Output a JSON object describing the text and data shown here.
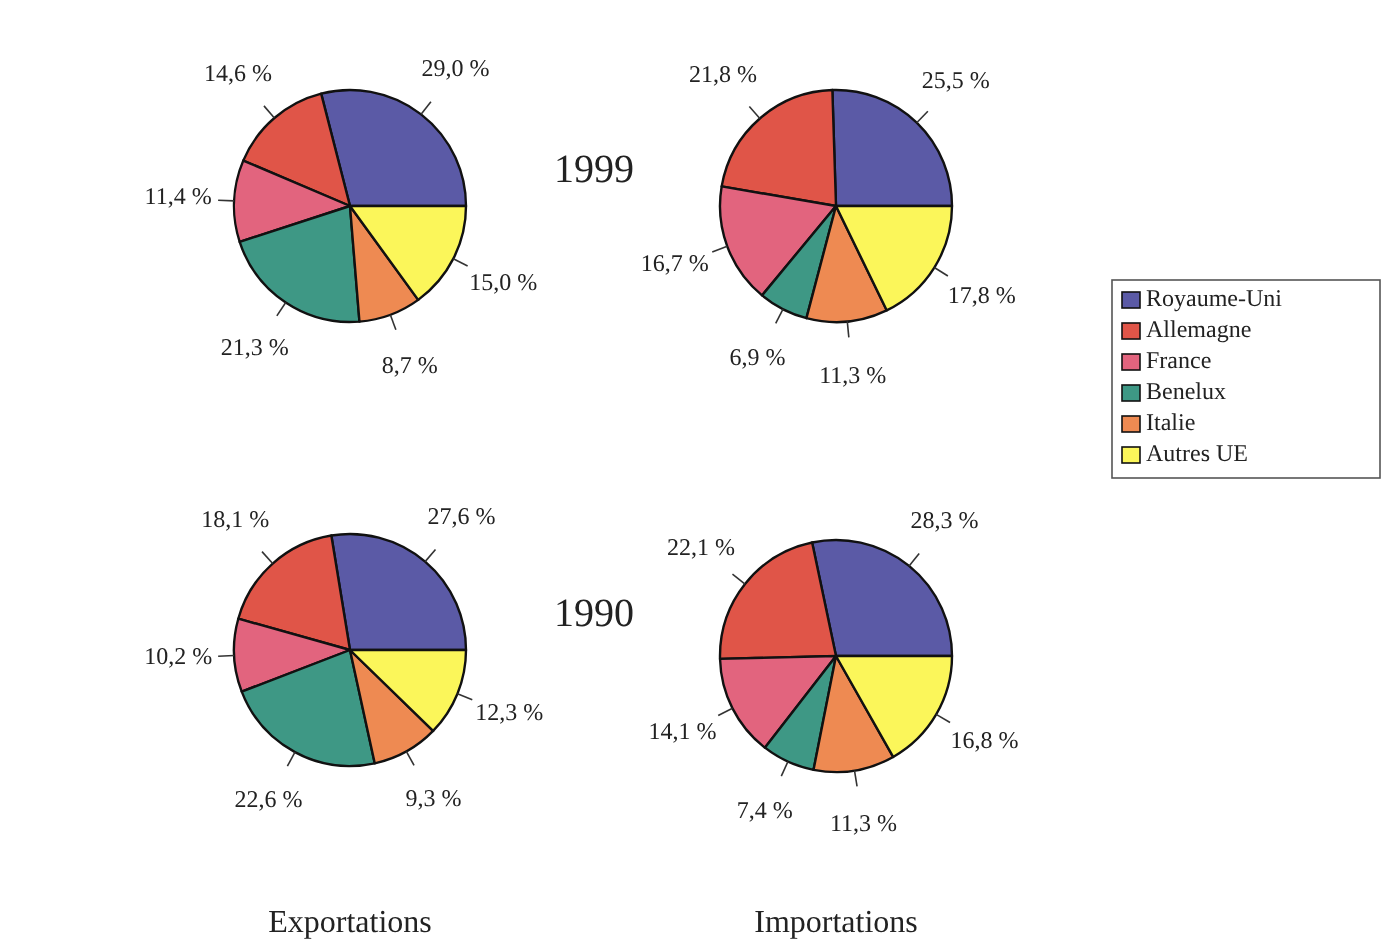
{
  "chart_data": [
    {
      "type": "pie",
      "categories": [
        null,
        null,
        null,
        null,
        null,
        null
      ],
      "values": [
        29.0,
        14.6,
        11.4,
        21.3,
        8.7,
        15.0
      ],
      "value_labels": [
        "29,0 %",
        "14,6 %",
        "11,4 %",
        "21,3 %",
        "8,7 %",
        "15,0 %"
      ],
      "colors": [
        "#5b5aa6",
        "#e05548",
        "#e2647e",
        "#3e9885",
        "#ee8a52",
        "#fbf65a"
      ],
      "annotations": [
        "1999"
      ]
    },
    {
      "type": "pie",
      "categories": [
        "Royaume-Uni",
        "Allemagne",
        "France",
        "Benelux",
        "Italie",
        "Autres UE"
      ],
      "values": [
        25.5,
        21.8,
        16.7,
        6.9,
        11.3,
        17.8
      ],
      "value_labels": [
        "25,5 %",
        "21,8 %",
        "16,7 %",
        "6,9 %",
        "11,3 %",
        "17,8 %"
      ],
      "colors": [
        "#5b5aa6",
        "#e05548",
        "#e2647e",
        "#3e9885",
        "#ee8a52",
        "#fbf65a"
      ],
      "legend": "right"
    },
    {
      "type": "pie",
      "categories": [
        null,
        null,
        null,
        null,
        null,
        null
      ],
      "values": [
        27.6,
        18.1,
        10.2,
        22.6,
        9.3,
        12.3
      ],
      "value_labels": [
        "27,6 %",
        "18,1 %",
        "10,2 %",
        "22,6 %",
        "9,3 %",
        "12,3 %"
      ],
      "colors": [
        "#5b5aa6",
        "#e05548",
        "#e2647e",
        "#3e9885",
        "#ee8a52",
        "#fbf65a"
      ],
      "annotations": [
        "1990"
      ],
      "xlabel": "Exportations"
    },
    {
      "type": "pie",
      "categories": [
        null,
        null,
        null,
        null,
        null,
        null
      ],
      "values": [
        28.3,
        22.1,
        14.1,
        7.4,
        11.3,
        16.8
      ],
      "value_labels": [
        "28,3 %",
        "22,1 %",
        "14,1 %",
        "7,4 %",
        "11,3 %",
        "16,8 %"
      ],
      "colors": [
        "#5b5aa6",
        "#e05548",
        "#e2647e",
        "#3e9885",
        "#ee8a52",
        "#fbf65a"
      ],
      "xlabel": "Importations"
    }
  ]
}
